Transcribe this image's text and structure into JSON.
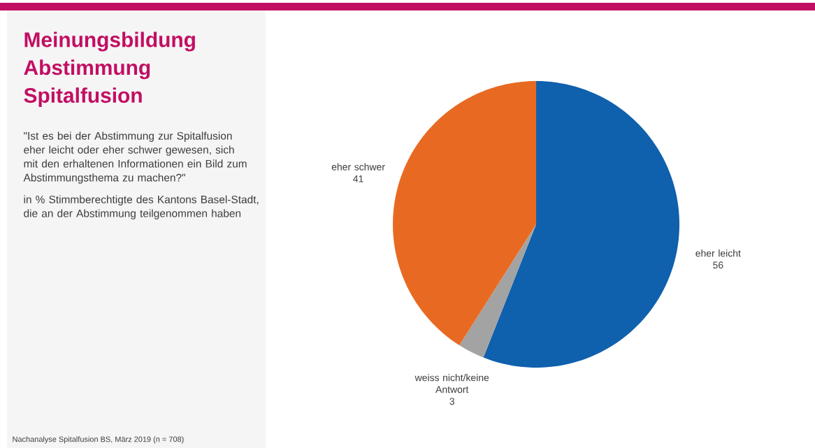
{
  "chart_data": {
    "type": "pie",
    "title": "Meinungsbildung Abstimmung Spitalfusion",
    "subtitle": "\"Ist es bei der Abstimmung zur Spitalfusion eher leicht oder eher schwer gewesen, sich mit den erhaltenen Informationen ein Bild zum Abstimmungsthema zu machen?\"",
    "annotations": [
      "in % Stimmberechtigte des Kantons Basel-Stadt, die an der Abstimmung teilgenommen haben",
      "Nachanalyse Spitalfusion BS, März 2019 (n = 708)"
    ],
    "categories": [
      "eher leicht",
      "weiss nicht/keine Antwort",
      "eher schwer"
    ],
    "values": [
      56,
      3,
      41
    ],
    "colors": [
      "#0f60ad",
      "#a3a3a3",
      "#e86a22"
    ],
    "data_labels": true
  }
}
